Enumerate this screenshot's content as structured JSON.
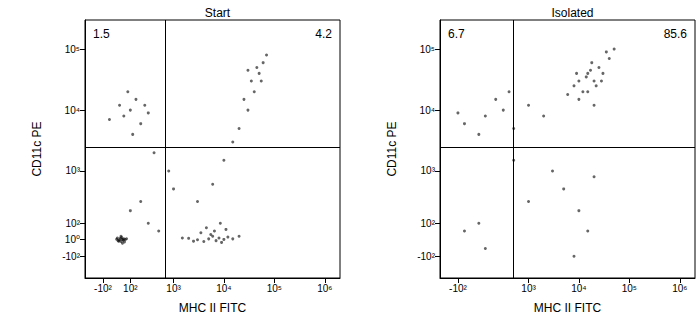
{
  "chart_data": [
    {
      "type": "scatter",
      "title": "Start",
      "x_label": "MHC II FITC",
      "y_label": "CD11c PE",
      "log": true,
      "grid": false,
      "color": "#000000",
      "xlim": [
        -300,
        2000000
      ],
      "xticks": [
        {
          "value": -100,
          "label": "-10²"
        },
        {
          "value": 100,
          "label": "10²"
        },
        {
          "value": 1000,
          "label": "10³"
        },
        {
          "value": 10000,
          "label": "10⁴"
        },
        {
          "value": 100000,
          "label": "10⁵"
        },
        {
          "value": 1000000,
          "label": "10⁶"
        }
      ],
      "ylim": [
        -300,
        300000
      ],
      "yticks": [
        {
          "value": -100,
          "label": "-10²"
        },
        {
          "value": 1,
          "label": "10⁰"
        },
        {
          "value": 100,
          "label": "10²"
        },
        {
          "value": 1000,
          "label": "10³"
        },
        {
          "value": 10000,
          "label": "10⁴"
        },
        {
          "value": 100000,
          "label": "10⁵"
        }
      ],
      "gates": {
        "x": 700,
        "y": 2500
      },
      "quadrant_values": {
        "top_left": 1.5,
        "top_right": 4.2
      },
      "x": [
        20,
        40,
        10,
        50,
        30,
        60,
        0,
        25,
        45,
        35,
        15,
        55,
        70,
        5,
        30,
        40,
        3000,
        5000,
        8000,
        4000,
        6000,
        10000,
        2000,
        7000,
        12000,
        5500,
        3500,
        9000,
        15000,
        2500,
        6500,
        4500,
        20000,
        1500,
        11000,
        8500,
        3000,
        6000,
        10000,
        15000,
        20000,
        30000,
        40000,
        50000,
        60000,
        35000,
        25000,
        45000,
        70000,
        30000,
        55000,
        50,
        100,
        200,
        20,
        150,
        300,
        -50,
        80,
        250,
        120,
        200,
        300,
        500,
        100,
        800,
        400,
        1000
      ],
      "y": [
        0,
        2,
        -5,
        5,
        -10,
        1,
        3,
        8,
        -3,
        12,
        -8,
        -12,
        6,
        10,
        20,
        -20,
        0,
        5,
        10,
        -10,
        20,
        2,
        8,
        -5,
        15,
        30,
        40,
        -15,
        5,
        -8,
        50,
        70,
        20,
        10,
        60,
        100,
        300,
        600,
        1500,
        3000,
        5000,
        10000,
        20000,
        40000,
        60000,
        30000,
        15000,
        50000,
        80000,
        45000,
        30000,
        8000,
        10000,
        6000,
        12000,
        15000,
        9000,
        7000,
        20000,
        12000,
        4000,
        300,
        100,
        50,
        200,
        1000,
        2000,
        500
      ]
    },
    {
      "type": "scatter",
      "title": "Isolated",
      "x_label": "MHC II FITC",
      "y_label": "CD11c PE",
      "log": true,
      "grid": false,
      "color": "#000000",
      "xlim": [
        -300,
        2000000
      ],
      "xticks": [
        {
          "value": -100,
          "label": "-10²"
        },
        {
          "value": 1000,
          "label": "10³"
        },
        {
          "value": 10000,
          "label": "10⁴"
        },
        {
          "value": 100000,
          "label": "10⁵"
        },
        {
          "value": 1000000,
          "label": "10⁶"
        }
      ],
      "ylim": [
        -300,
        300000
      ],
      "yticks": [
        {
          "value": -100,
          "label": "-10²"
        },
        {
          "value": 100,
          "label": "10²"
        },
        {
          "value": 1000,
          "label": "10³"
        },
        {
          "value": 10000,
          "label": "10⁴"
        },
        {
          "value": 100000,
          "label": "10⁵"
        }
      ],
      "gates": {
        "x": 500,
        "y": 2500
      },
      "quadrant_values": {
        "top_left": 6.7,
        "top_right": 85.6
      },
      "x": [
        10000,
        15000,
        20000,
        12000,
        25000,
        8000,
        18000,
        30000,
        15000,
        22000,
        10000,
        40000,
        6000,
        35000,
        14000,
        28000,
        17000,
        9000,
        50000,
        20000,
        100,
        300,
        -50,
        200,
        500,
        50,
        1000,
        2000,
        400,
        -100,
        50,
        -50,
        5000,
        10000,
        3000,
        20000,
        100,
        8000,
        15000,
        1000,
        500
      ],
      "y": [
        30000,
        40000,
        30000,
        20000,
        50000,
        25000,
        60000,
        40000,
        20000,
        25000,
        15000,
        70000,
        18000,
        90000,
        35000,
        30000,
        45000,
        40000,
        100000,
        12000,
        8000,
        10000,
        6000,
        15000,
        5000,
        4000,
        12000,
        8000,
        20000,
        9000,
        100,
        50,
        500,
        200,
        1000,
        800,
        -50,
        -100,
        50,
        300,
        1500
      ]
    }
  ]
}
